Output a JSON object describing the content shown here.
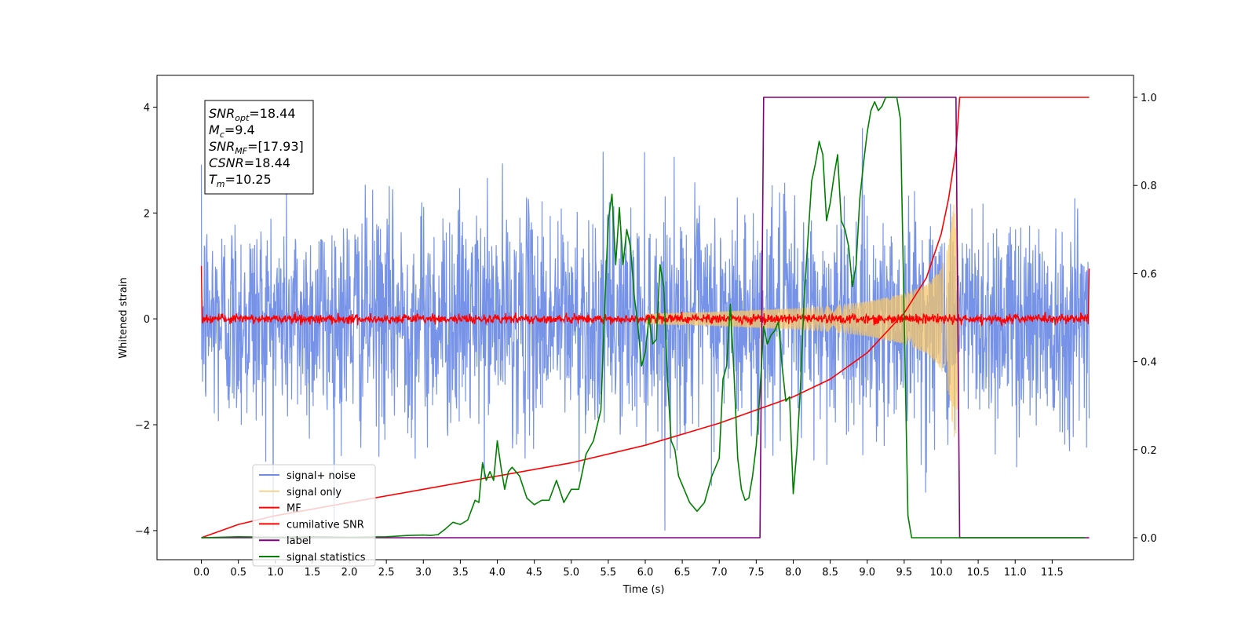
{
  "chart_data": {
    "type": "line",
    "xlabel": "Time (s)",
    "ylabel_left": "Whitened strain",
    "ylabel_right": "",
    "xlim": [
      -0.6,
      12.6
    ],
    "ylim_left": [
      -4.55,
      4.6
    ],
    "ylim_right": [
      -0.05,
      1.05
    ],
    "x_ticks": [
      0.0,
      0.5,
      1.0,
      1.5,
      2.0,
      2.5,
      3.0,
      3.5,
      4.0,
      4.5,
      5.0,
      5.5,
      6.0,
      6.5,
      7.0,
      7.5,
      8.0,
      8.5,
      9.0,
      9.5,
      10.0,
      10.5,
      11.0,
      11.5
    ],
    "x_tick_labels": [
      "0.0",
      "0.5",
      "1.0",
      "1.5",
      "2.0",
      "2.5",
      "3.0",
      "3.5",
      "4.0",
      "4.5",
      "5.0",
      "5.5",
      "6.0",
      "6.5",
      "7.0",
      "7.5",
      "8.0",
      "8.5",
      "9.0",
      "9.5",
      "10.0",
      "10.5",
      "11.0",
      "11.5"
    ],
    "y_left_ticks": [
      -4,
      -2,
      0,
      2,
      4
    ],
    "y_left_tick_labels": [
      "−4",
      "−2",
      "0",
      "2",
      "4"
    ],
    "y_right_ticks": [
      0.0,
      0.2,
      0.4,
      0.6,
      0.8,
      1.0
    ],
    "y_right_tick_labels": [
      "0.0",
      "0.2",
      "0.4",
      "0.6",
      "0.8",
      "1.0"
    ],
    "grid": false,
    "legend_position": "lower-left",
    "legend": [
      {
        "label": "signal+ noise",
        "color": "#6f8de6"
      },
      {
        "label": "signal only",
        "color": "#f5c56a"
      },
      {
        "label": "MF",
        "color": "#ff0000"
      },
      {
        "label": "cumilative SNR",
        "color": "#ff0000"
      },
      {
        "label": "label",
        "color": "#800080"
      },
      {
        "label": "signal statistics",
        "color": "#008000"
      }
    ],
    "annotation": [
      {
        "name": "SNR",
        "sub": "opt",
        "value": "=18.44"
      },
      {
        "name": "M",
        "sub": "c",
        "value": "=9.4"
      },
      {
        "name": "SNR",
        "sub": "MF",
        "value": "=[17.93]"
      },
      {
        "name": "CSNR",
        "sub": "",
        "value": "=18.44"
      },
      {
        "name": "T",
        "sub": "m",
        "value": "=10.25"
      }
    ],
    "series": [
      {
        "name": "signal+ noise",
        "axis": "left",
        "color": "#6f8de6",
        "description_values": {
          "x_range": [
            0.0,
            12.0
          ],
          "typical_band": [
            -2.7,
            2.8
          ],
          "max": 3.78,
          "min": -4.0
        }
      },
      {
        "name": "signal only",
        "axis": "left",
        "color": "#f5c56a",
        "envelope_x": [
          6.0,
          7.0,
          8.0,
          8.5,
          9.0,
          9.5,
          9.8,
          10.0,
          10.1,
          10.2,
          10.25
        ],
        "envelope_amp": [
          0.1,
          0.14,
          0.2,
          0.25,
          0.33,
          0.48,
          0.65,
          0.95,
          1.4,
          2.5,
          0.0
        ]
      },
      {
        "name": "MF",
        "axis": "left",
        "color": "#ff0000",
        "description_values": {
          "x_range": [
            0.0,
            12.0
          ],
          "typical_band": [
            -0.12,
            0.12
          ],
          "start_value": 1.0,
          "end_value": 0.95
        }
      },
      {
        "name": "cumilative SNR",
        "axis": "right",
        "color": "#ff0000",
        "x": [
          0.0,
          0.5,
          1.0,
          2.0,
          3.0,
          4.0,
          5.0,
          6.0,
          7.0,
          7.5,
          8.0,
          8.5,
          9.0,
          9.5,
          9.8,
          10.0,
          10.1,
          10.2,
          10.25,
          12.0
        ],
        "y": [
          0.0,
          0.03,
          0.05,
          0.08,
          0.11,
          0.14,
          0.17,
          0.21,
          0.26,
          0.29,
          0.32,
          0.36,
          0.42,
          0.51,
          0.59,
          0.69,
          0.77,
          0.88,
          1.0,
          1.0
        ]
      },
      {
        "name": "label",
        "axis": "right",
        "color": "#800080",
        "x": [
          0.0,
          7.55,
          7.6,
          10.2,
          10.25,
          12.0
        ],
        "y": [
          0.0,
          0.0,
          1.0,
          1.0,
          0.0,
          0.0
        ]
      },
      {
        "name": "signal statistics",
        "axis": "right",
        "color": "#008000",
        "x": [
          0.0,
          0.5,
          1.0,
          1.5,
          2.0,
          2.5,
          2.8,
          3.0,
          3.1,
          3.2,
          3.3,
          3.4,
          3.5,
          3.6,
          3.7,
          3.75,
          3.8,
          3.85,
          3.9,
          3.95,
          4.0,
          4.05,
          4.1,
          4.15,
          4.2,
          4.3,
          4.4,
          4.5,
          4.6,
          4.7,
          4.8,
          4.9,
          5.0,
          5.1,
          5.2,
          5.3,
          5.4,
          5.45,
          5.5,
          5.55,
          5.6,
          5.65,
          5.7,
          5.75,
          5.8,
          5.85,
          5.9,
          5.95,
          6.0,
          6.05,
          6.1,
          6.15,
          6.2,
          6.25,
          6.3,
          6.35,
          6.4,
          6.45,
          6.5,
          6.6,
          6.7,
          6.8,
          6.9,
          7.0,
          7.05,
          7.1,
          7.15,
          7.2,
          7.25,
          7.3,
          7.35,
          7.4,
          7.45,
          7.5,
          7.55,
          7.6,
          7.65,
          7.7,
          7.75,
          7.8,
          7.85,
          7.9,
          7.95,
          8.0,
          8.05,
          8.1,
          8.15,
          8.2,
          8.25,
          8.3,
          8.35,
          8.4,
          8.45,
          8.5,
          8.55,
          8.6,
          8.65,
          8.7,
          8.75,
          8.8,
          8.85,
          8.9,
          8.95,
          9.0,
          9.05,
          9.1,
          9.15,
          9.2,
          9.25,
          9.3,
          9.35,
          9.4,
          9.45,
          9.5,
          9.55,
          9.6,
          9.65,
          9.7,
          9.75,
          9.8,
          9.9,
          10.0,
          10.1,
          10.15,
          10.2,
          10.25,
          10.3,
          10.35,
          10.5,
          11.0,
          11.5,
          11.95
        ],
        "y": [
          0.0,
          0.002,
          0.001,
          0.002,
          0.001,
          0.002,
          0.005,
          0.006,
          0.005,
          0.007,
          0.02,
          0.035,
          0.03,
          0.04,
          0.085,
          0.08,
          0.17,
          0.13,
          0.15,
          0.13,
          0.22,
          0.16,
          0.11,
          0.15,
          0.16,
          0.14,
          0.09,
          0.075,
          0.085,
          0.085,
          0.13,
          0.08,
          0.11,
          0.11,
          0.19,
          0.22,
          0.29,
          0.52,
          0.72,
          0.78,
          0.62,
          0.75,
          0.62,
          0.7,
          0.66,
          0.55,
          0.48,
          0.39,
          0.42,
          0.5,
          0.44,
          0.45,
          0.62,
          0.57,
          0.36,
          0.22,
          0.2,
          0.14,
          0.12,
          0.08,
          0.06,
          0.08,
          0.14,
          0.18,
          0.36,
          0.39,
          0.53,
          0.37,
          0.18,
          0.11,
          0.085,
          0.09,
          0.14,
          0.21,
          0.33,
          0.48,
          0.44,
          0.46,
          0.47,
          0.49,
          0.39,
          0.31,
          0.32,
          0.1,
          0.2,
          0.35,
          0.55,
          0.68,
          0.81,
          0.85,
          0.9,
          0.87,
          0.72,
          0.76,
          0.82,
          0.87,
          0.72,
          0.7,
          0.66,
          0.57,
          0.62,
          0.77,
          0.85,
          0.92,
          0.97,
          0.99,
          0.97,
          0.98,
          1.0,
          1.0,
          1.0,
          1.0,
          0.95,
          0.5,
          0.05,
          0.0,
          0.0,
          0.0,
          0.0,
          0.0,
          0.0,
          0.0,
          0.0,
          0.0,
          0.0,
          0.0,
          0.0,
          0.0,
          0.0,
          0.0,
          0.0,
          0.0
        ],
        "y_corrected_note": ""
      }
    ]
  }
}
